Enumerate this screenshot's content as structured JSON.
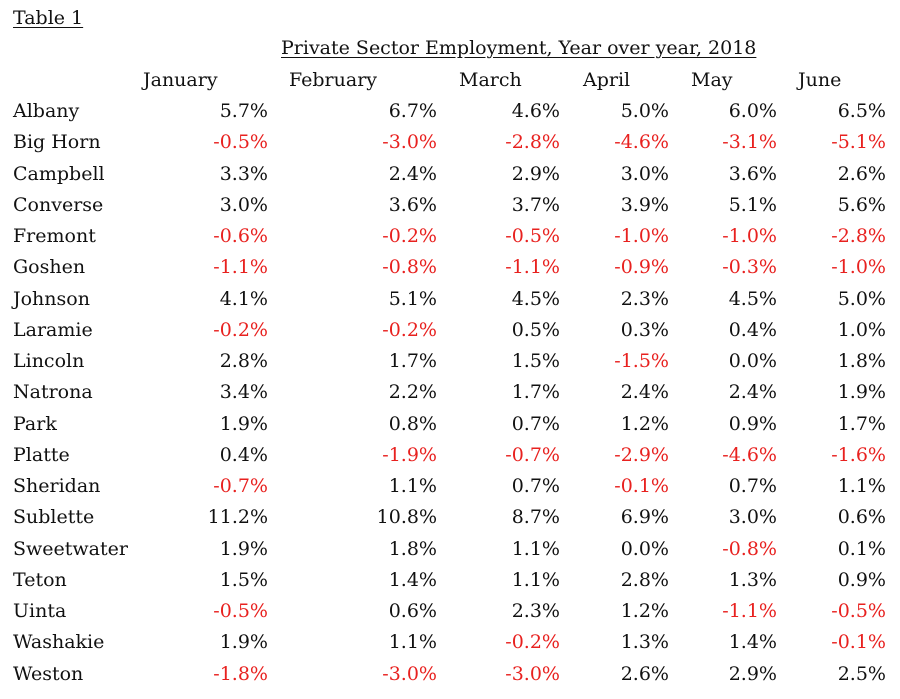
{
  "table_label": "Table 1",
  "title": "Private Sector Employment, Year over year, 2018",
  "columns": [
    "January",
    "February",
    "March",
    "April",
    "May",
    "June"
  ],
  "colors": {
    "negative": "#e8211f",
    "text": "#111111"
  },
  "rows": [
    {
      "county": "Albany",
      "values": [
        "5.7%",
        "6.7%",
        "4.6%",
        "5.0%",
        "6.0%",
        "6.5%"
      ]
    },
    {
      "county": "Big Horn",
      "values": [
        "-0.5%",
        "-3.0%",
        "-2.8%",
        "-4.6%",
        "-3.1%",
        "-5.1%"
      ]
    },
    {
      "county": "Campbell",
      "values": [
        "3.3%",
        "2.4%",
        "2.9%",
        "3.0%",
        "3.6%",
        "2.6%"
      ]
    },
    {
      "county": "Converse",
      "values": [
        "3.0%",
        "3.6%",
        "3.7%",
        "3.9%",
        "5.1%",
        "5.6%"
      ]
    },
    {
      "county": "Fremont",
      "values": [
        "-0.6%",
        "-0.2%",
        "-0.5%",
        "-1.0%",
        "-1.0%",
        "-2.8%"
      ]
    },
    {
      "county": "Goshen",
      "values": [
        "-1.1%",
        "-0.8%",
        "-1.1%",
        "-0.9%",
        "-0.3%",
        "-1.0%"
      ]
    },
    {
      "county": "Johnson",
      "values": [
        "4.1%",
        "5.1%",
        "4.5%",
        "2.3%",
        "4.5%",
        "5.0%"
      ]
    },
    {
      "county": "Laramie",
      "values": [
        "-0.2%",
        "-0.2%",
        "0.5%",
        "0.3%",
        "0.4%",
        "1.0%"
      ]
    },
    {
      "county": "Lincoln",
      "values": [
        "2.8%",
        "1.7%",
        "1.5%",
        "-1.5%",
        "0.0%",
        "1.8%"
      ]
    },
    {
      "county": "Natrona",
      "values": [
        "3.4%",
        "2.2%",
        "1.7%",
        "2.4%",
        "2.4%",
        "1.9%"
      ]
    },
    {
      "county": "Park",
      "values": [
        "1.9%",
        "0.8%",
        "0.7%",
        "1.2%",
        "0.9%",
        "1.7%"
      ]
    },
    {
      "county": "Platte",
      "values": [
        "0.4%",
        "-1.9%",
        "-0.7%",
        "-2.9%",
        "-4.6%",
        "-1.6%"
      ]
    },
    {
      "county": "Sheridan",
      "values": [
        "-0.7%",
        "1.1%",
        "0.7%",
        "-0.1%",
        "0.7%",
        "1.1%"
      ]
    },
    {
      "county": "Sublette",
      "values": [
        "11.2%",
        "10.8%",
        "8.7%",
        "6.9%",
        "3.0%",
        "0.6%"
      ]
    },
    {
      "county": "Sweetwater",
      "values": [
        "1.9%",
        "1.8%",
        "1.1%",
        "0.0%",
        "-0.8%",
        "0.1%"
      ]
    },
    {
      "county": "Teton",
      "values": [
        "1.5%",
        "1.4%",
        "1.1%",
        "2.8%",
        "1.3%",
        "0.9%"
      ]
    },
    {
      "county": "Uinta",
      "values": [
        "-0.5%",
        "0.6%",
        "2.3%",
        "1.2%",
        "-1.1%",
        "-0.5%"
      ]
    },
    {
      "county": "Washakie",
      "values": [
        "1.9%",
        "1.1%",
        "-0.2%",
        "1.3%",
        "1.4%",
        "-0.1%"
      ]
    },
    {
      "county": "Weston",
      "values": [
        "-1.8%",
        "-3.0%",
        "-3.0%",
        "2.6%",
        "2.9%",
        "2.5%"
      ]
    }
  ]
}
